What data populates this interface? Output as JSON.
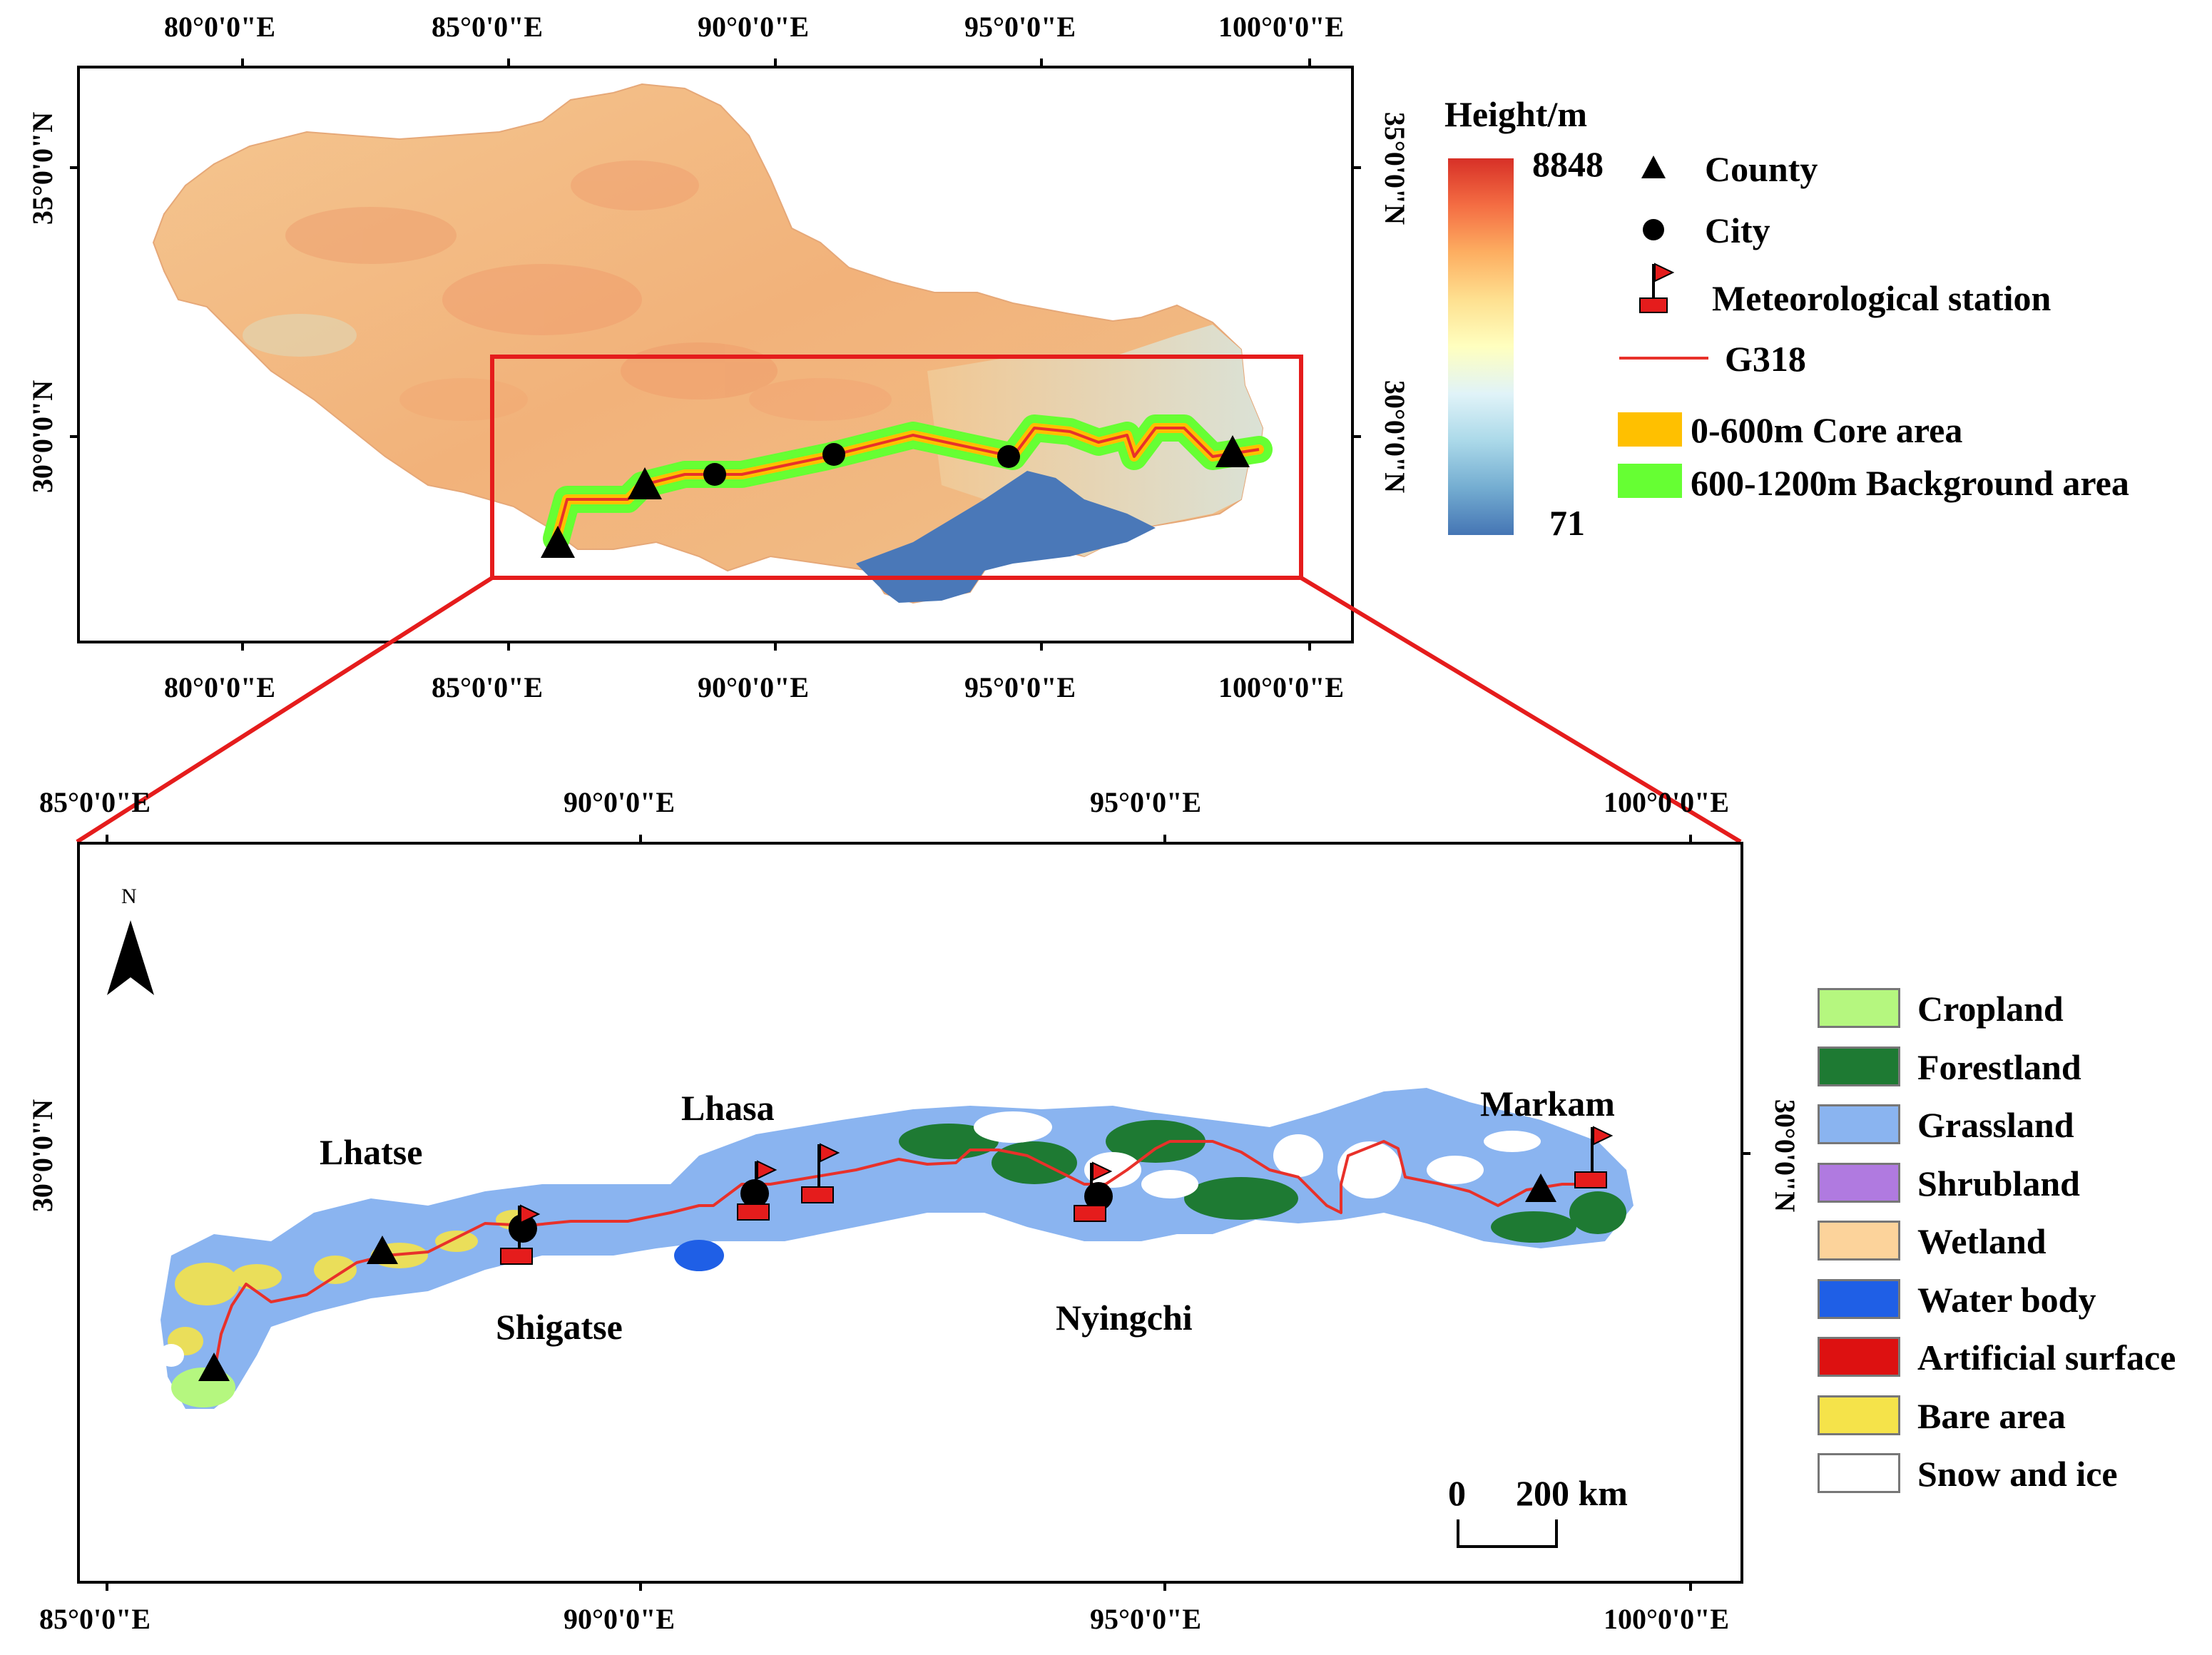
{
  "top_map": {
    "x_ticks": [
      "80°0'0\"E",
      "85°0'0\"E",
      "90°0'0\"E",
      "95°0'0\"E",
      "100°0'0\"E"
    ],
    "y_ticks": [
      "35°0'0\"N",
      "30°0'0\"N"
    ]
  },
  "bottom_map": {
    "x_ticks": [
      "85°0'0\"E",
      "90°0'0\"E",
      "95°0'0\"E",
      "100°0'0\"E"
    ],
    "y_ticks": [
      "30°0'0\"N"
    ],
    "north_label": "N",
    "places": {
      "lhatse": "Lhatse",
      "lhasa": "Lhasa",
      "markam": "Markam",
      "shigatse": "Shigatse",
      "nyingchi": "Nyingchi"
    },
    "scale_bar": {
      "start": "0",
      "end": "200 km"
    }
  },
  "height_legend": {
    "title": "Height/m",
    "max": "8848",
    "min": "71",
    "ramp_colors": [
      "#d73027",
      "#f46d43",
      "#fdae61",
      "#fee090",
      "#ffffbf",
      "#e0f3f8",
      "#abd9e9",
      "#74add1",
      "#4575b4"
    ]
  },
  "symbol_legend": {
    "county": "County",
    "city": "City",
    "station": "Meteorological station",
    "road": "G318",
    "core": "0-600m Core area",
    "background": "600-1200m Background area",
    "core_color": "#ffc000",
    "background_color": "#66ff33",
    "road_color": "#e8312a"
  },
  "landcover_legend": [
    {
      "label": "Cropland",
      "color": "#b5f77f"
    },
    {
      "label": "Forestland",
      "color": "#1e7a33"
    },
    {
      "label": "Grassland",
      "color": "#8ab4f0"
    },
    {
      "label": "Shrubland",
      "color": "#b07ae0"
    },
    {
      "label": "Wetland",
      "color": "#fcd39b"
    },
    {
      "label": "Water body",
      "color": "#1f5fe6"
    },
    {
      "label": "Artificial surface",
      "color": "#dd1111"
    },
    {
      "label": "Bare area",
      "color": "#f5e34a"
    },
    {
      "label": "Snow and ice",
      "color": "#ffffff"
    }
  ]
}
